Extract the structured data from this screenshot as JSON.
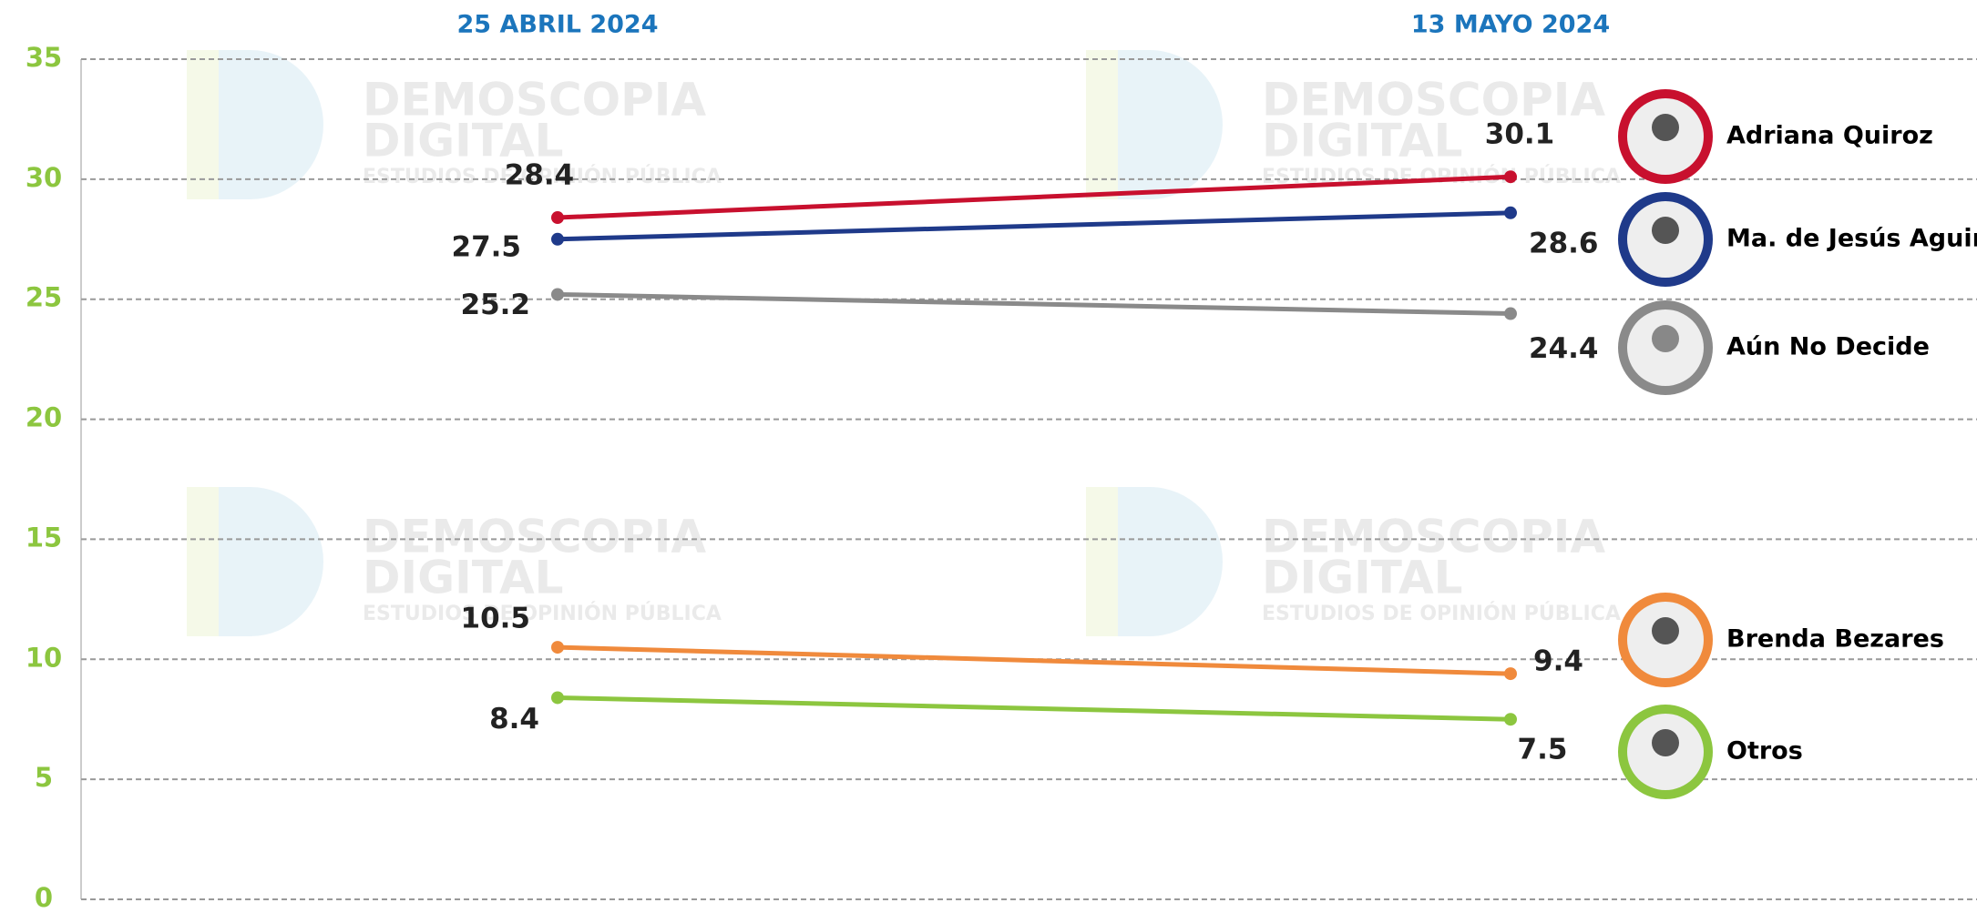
{
  "chart_data": {
    "type": "line",
    "categories": [
      "25 ABRIL 2024",
      "13 MAYO 2024"
    ],
    "series": [
      {
        "name": "Adriana Quiroz",
        "color": "#c8102e",
        "values": [
          28.4,
          30.1
        ]
      },
      {
        "name": "Ma. de Jesús Aguir",
        "color": "#1f3a8a",
        "values": [
          27.5,
          28.6
        ]
      },
      {
        "name": "Aún No Decide",
        "color": "#8a8a8a",
        "values": [
          25.2,
          24.4
        ]
      },
      {
        "name": "Brenda Bezares",
        "color": "#f08a3c",
        "values": [
          10.5,
          9.4
        ]
      },
      {
        "name": "Otros",
        "color": "#8cc63f",
        "values": [
          8.4,
          7.5
        ]
      }
    ],
    "ylim": [
      0,
      35
    ],
    "yticks": [
      0,
      5,
      10,
      15,
      20,
      25,
      30,
      35
    ],
    "grid": true,
    "legend": "right",
    "watermark": {
      "line1": "DEMOSCOPIA",
      "line2": "DIGITAL",
      "line3": "ESTUDIOS DE OPINIÓN PÚBLICA"
    }
  }
}
